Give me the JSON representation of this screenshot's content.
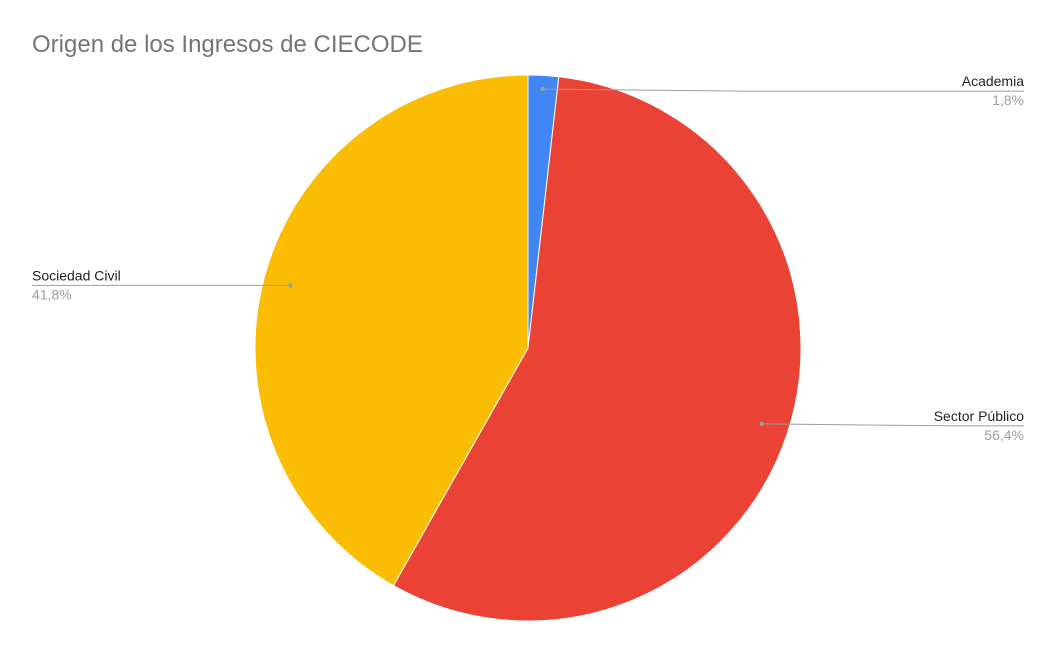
{
  "chart_data": {
    "type": "pie",
    "title": "Origen de los Ingresos de CIECODE",
    "slices": [
      {
        "label": "Academia",
        "value": 1.8,
        "display": "1,8%",
        "color": "#4285f4",
        "label_side": "right"
      },
      {
        "label": "Sector Público",
        "value": 56.4,
        "display": "56,4%",
        "color": "#ea4335",
        "label_side": "right"
      },
      {
        "label": "Sociedad Civil",
        "value": 41.8,
        "display": "41,8%",
        "color": "#fbbc04",
        "label_side": "left"
      }
    ],
    "legend": "none",
    "data_labels": "outside-with-leader-lines"
  }
}
